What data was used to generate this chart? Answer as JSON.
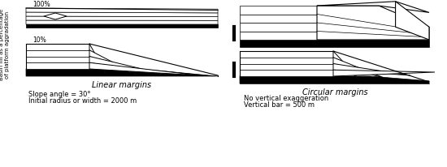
{
  "label_linear": "Linear margins",
  "label_circular": "Circular margins",
  "label_100": "100%",
  "label_10": "10%",
  "ylabel": "Basin fill as a percentage\nof platform aggradation",
  "text_slope": "Slope angle = 30°",
  "text_radius": "Initial radius or width = 2000 m",
  "text_novert": "No vertical exaggeration",
  "text_vertbar": "Vertical bar = 500 m"
}
